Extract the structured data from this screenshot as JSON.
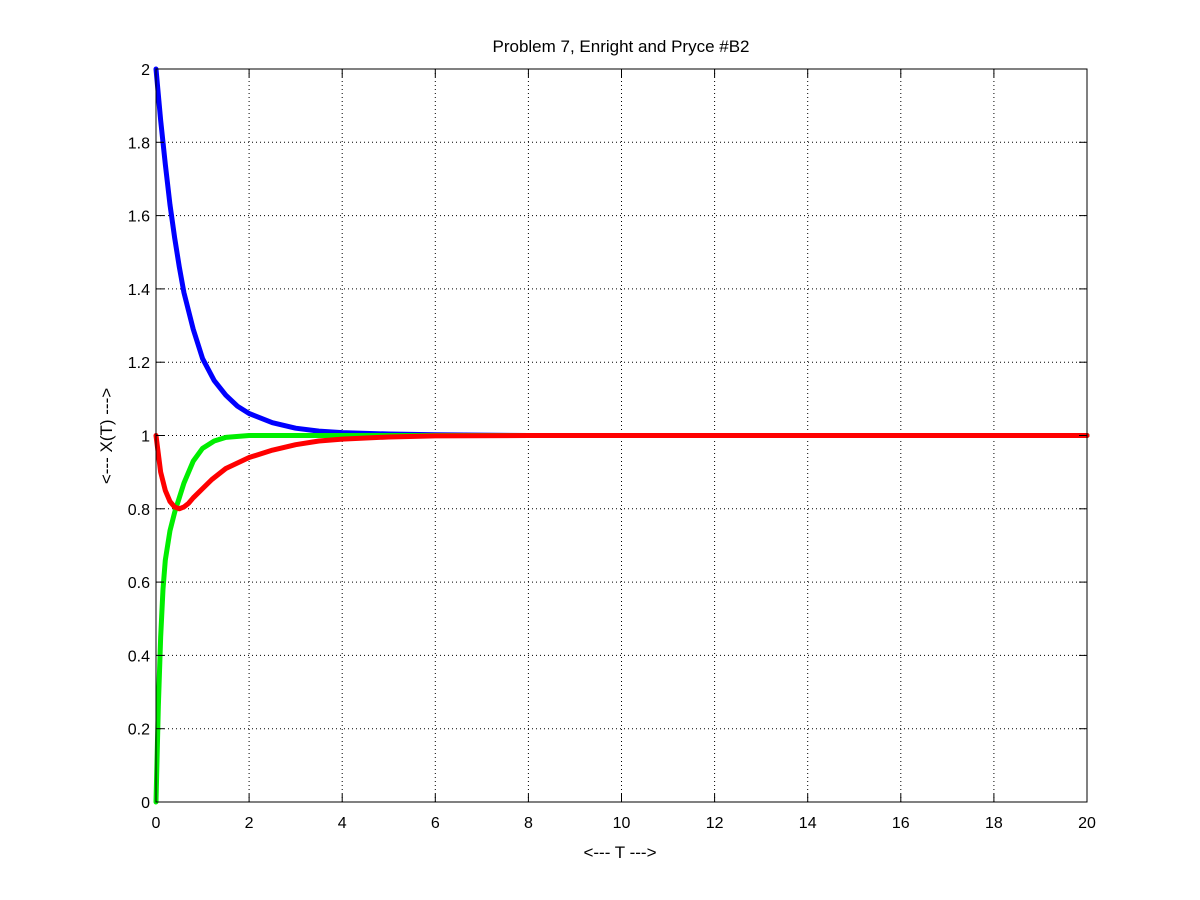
{
  "chart_data": {
    "type": "line",
    "title": "Problem 7, Enright and Pryce #B2",
    "xlabel": "<--- T --->",
    "ylabel": "<--- X(T) --->",
    "xlim": [
      0,
      20
    ],
    "ylim": [
      0,
      2
    ],
    "xticks": [
      0,
      2,
      4,
      6,
      8,
      10,
      12,
      14,
      16,
      18,
      20
    ],
    "yticks": [
      0,
      0.2,
      0.4,
      0.6,
      0.8,
      1,
      1.2,
      1.4,
      1.6,
      1.8,
      2
    ],
    "grid": true,
    "legend": "none",
    "series": [
      {
        "color": "#0000ff",
        "x": [
          0,
          0.1,
          0.2,
          0.3,
          0.4,
          0.5,
          0.6,
          0.8,
          1.0,
          1.25,
          1.5,
          1.75,
          2.0,
          2.5,
          3.0,
          3.5,
          4.0,
          5.0,
          6.0,
          8.0,
          10.0,
          12.0,
          14.0,
          16.0,
          18.0,
          20.0
        ],
        "y": [
          2.0,
          1.86,
          1.74,
          1.63,
          1.54,
          1.46,
          1.39,
          1.29,
          1.21,
          1.15,
          1.11,
          1.08,
          1.06,
          1.035,
          1.02,
          1.012,
          1.008,
          1.004,
          1.002,
          1.0,
          1.0,
          1.0,
          1.0,
          1.0,
          1.0,
          1.0
        ]
      },
      {
        "color": "#00ee00",
        "x": [
          0,
          0.05,
          0.1,
          0.15,
          0.2,
          0.3,
          0.4,
          0.5,
          0.6,
          0.8,
          1.0,
          1.25,
          1.5,
          2.0,
          2.5,
          3.0,
          4.0,
          6.0,
          8.0,
          10.0,
          12.0,
          14.0,
          16.0,
          18.0,
          20.0
        ],
        "y": [
          0.0,
          0.26,
          0.45,
          0.58,
          0.66,
          0.74,
          0.79,
          0.83,
          0.87,
          0.93,
          0.965,
          0.985,
          0.995,
          1.0,
          1.0,
          1.0,
          1.0,
          1.0,
          1.0,
          1.0,
          1.0,
          1.0,
          1.0,
          1.0,
          1.0
        ]
      },
      {
        "color": "#ff0000",
        "x": [
          0,
          0.1,
          0.2,
          0.3,
          0.4,
          0.5,
          0.6,
          0.7,
          0.8,
          1.0,
          1.2,
          1.5,
          2.0,
          2.5,
          3.0,
          3.5,
          4.0,
          5.0,
          6.0,
          8.0,
          10.0,
          12.0,
          14.0,
          16.0,
          18.0,
          20.0
        ],
        "y": [
          1.0,
          0.9,
          0.85,
          0.82,
          0.805,
          0.8,
          0.805,
          0.815,
          0.83,
          0.855,
          0.88,
          0.91,
          0.94,
          0.96,
          0.975,
          0.985,
          0.99,
          0.996,
          0.999,
          1.0,
          1.0,
          1.0,
          1.0,
          1.0,
          1.0,
          1.0
        ]
      }
    ]
  }
}
